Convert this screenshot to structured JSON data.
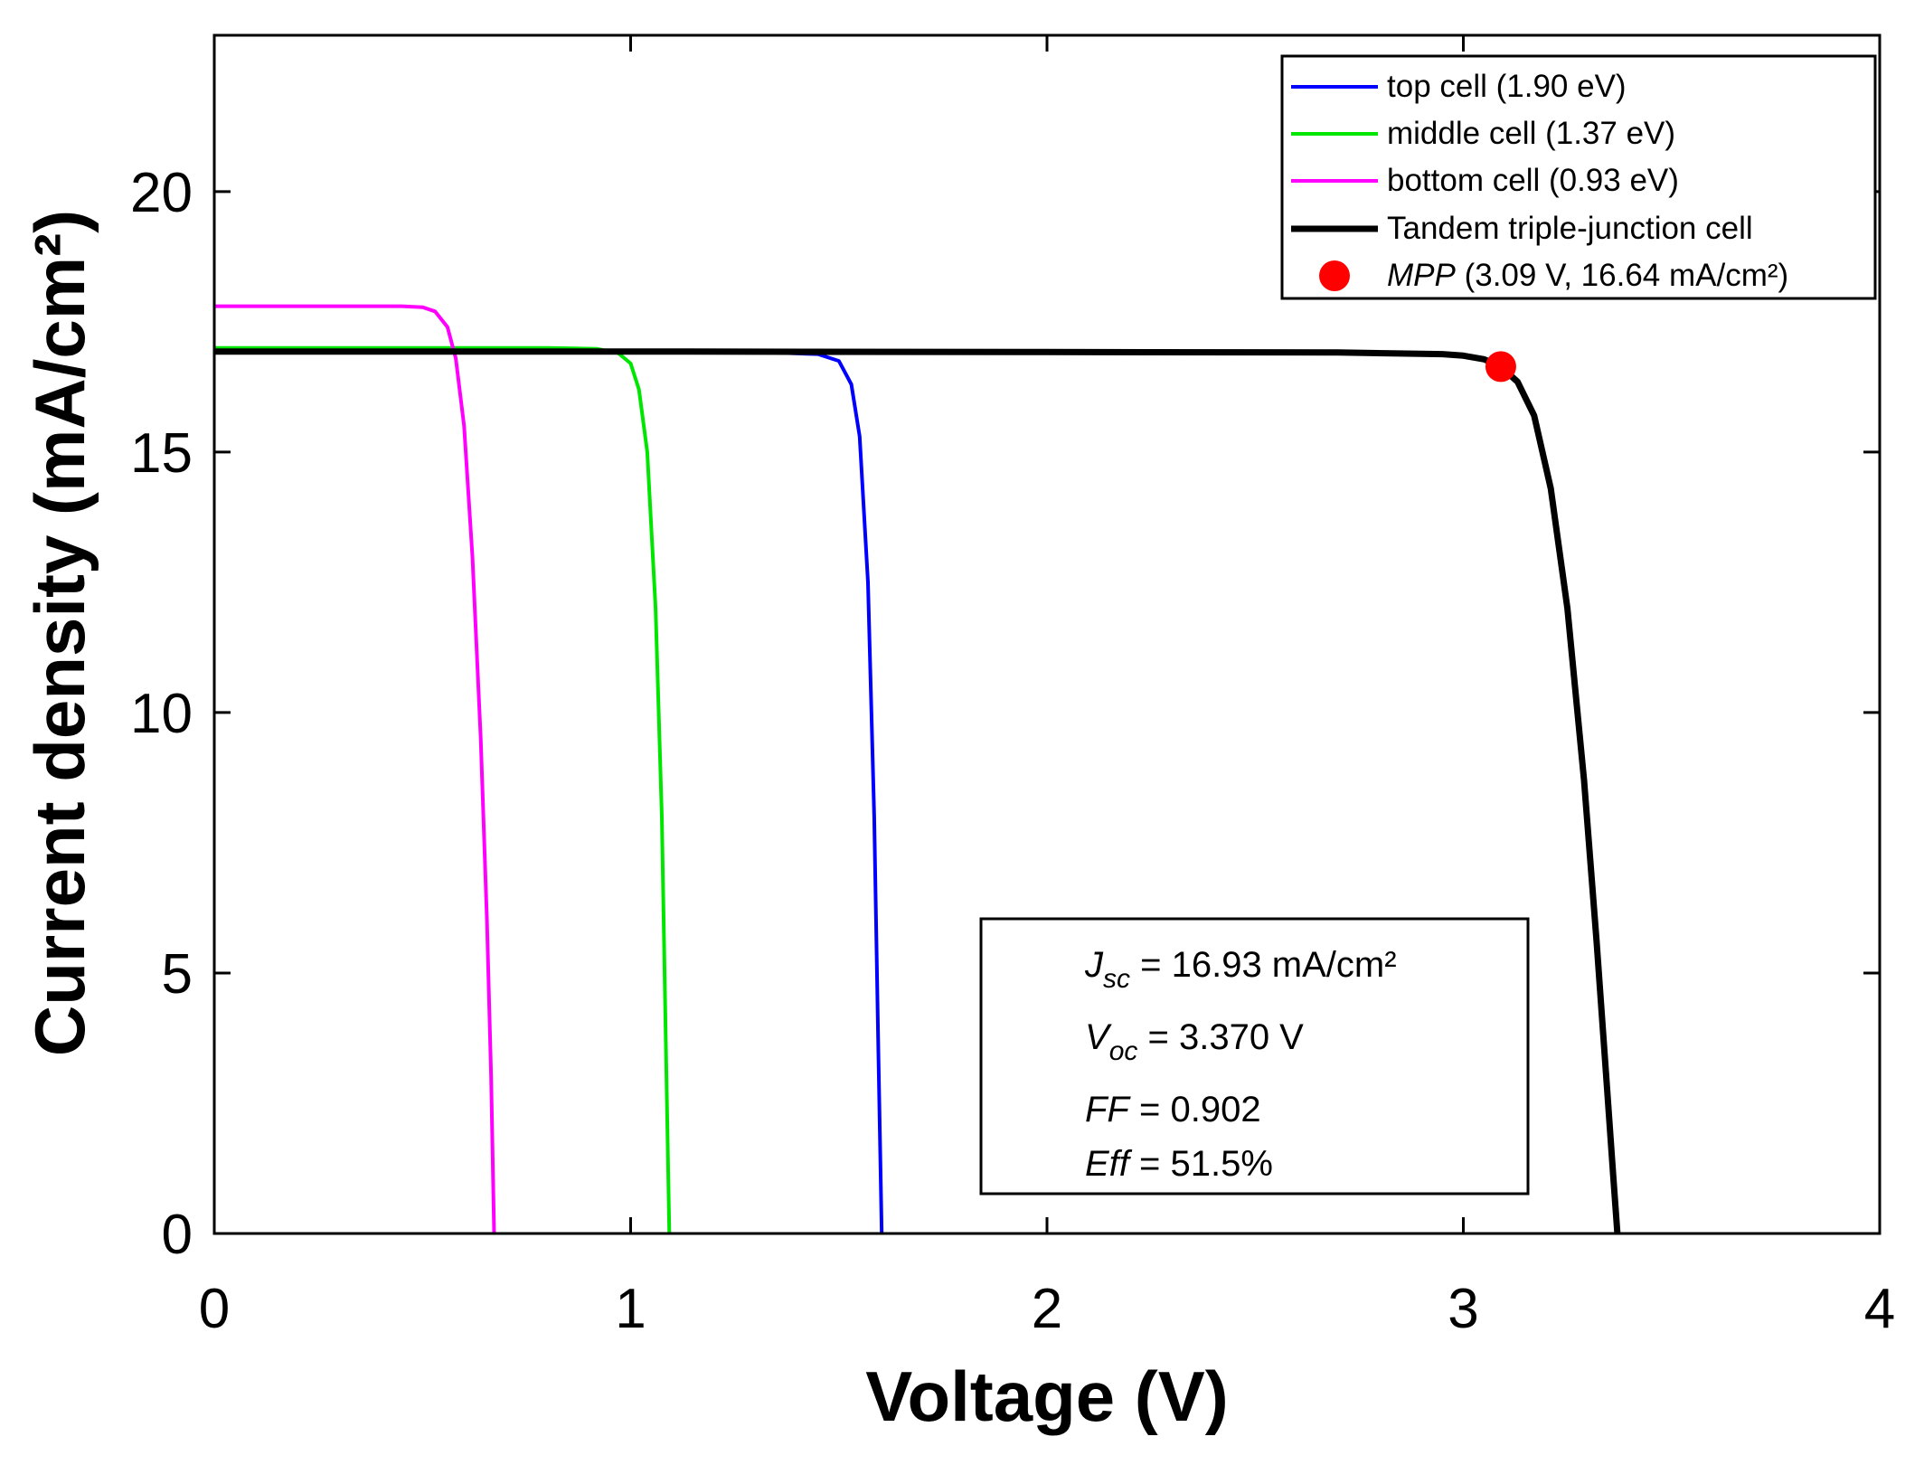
{
  "chart_data": {
    "type": "line",
    "xlabel": "Voltage (V)",
    "ylabel": "Current density (mA/cm²)",
    "xlim": [
      0,
      4
    ],
    "ylim": [
      0,
      23
    ],
    "xticks": [
      0,
      1,
      2,
      3,
      4
    ],
    "xtick_labels": [
      "0",
      "1",
      "2",
      "3",
      "4"
    ],
    "yticks": [
      0,
      5,
      10,
      15,
      20
    ],
    "ytick_labels": [
      "0",
      "5",
      "10",
      "15",
      "20"
    ],
    "grid": false,
    "legend_position": "top-right",
    "series": [
      {
        "name": "top cell (1.90 eV)",
        "color": "#0000ff",
        "x": [
          0,
          0.5,
          1.0,
          1.3,
          1.45,
          1.5,
          1.53,
          1.55,
          1.57,
          1.585,
          1.595,
          1.603
        ],
        "y": [
          16.93,
          16.93,
          16.93,
          16.92,
          16.88,
          16.75,
          16.3,
          15.3,
          12.5,
          8.0,
          3.5,
          0
        ]
      },
      {
        "name": "middle cell (1.37 eV)",
        "color": "#00e600",
        "x": [
          0,
          0.5,
          0.8,
          0.92,
          0.97,
          1.0,
          1.02,
          1.04,
          1.06,
          1.075,
          1.085,
          1.093
        ],
        "y": [
          17.0,
          17.0,
          17.0,
          16.98,
          16.9,
          16.7,
          16.2,
          15.0,
          12.0,
          8.0,
          3.5,
          0
        ]
      },
      {
        "name": "bottom cell (0.93 eV)",
        "color": "#ff00ff",
        "x": [
          0,
          0.3,
          0.45,
          0.5,
          0.53,
          0.56,
          0.58,
          0.6,
          0.62,
          0.64,
          0.655,
          0.665,
          0.672
        ],
        "y": [
          17.8,
          17.8,
          17.8,
          17.78,
          17.7,
          17.4,
          16.8,
          15.5,
          13.0,
          9.5,
          6.0,
          3.0,
          0
        ]
      },
      {
        "name": "Tandem triple-junction cell",
        "color": "#000000",
        "x": [
          0,
          1.0,
          2.0,
          2.7,
          2.95,
          3.0,
          3.05,
          3.09,
          3.13,
          3.17,
          3.21,
          3.25,
          3.29,
          3.32,
          3.345,
          3.36,
          3.37
        ],
        "y": [
          16.93,
          16.93,
          16.92,
          16.91,
          16.88,
          16.85,
          16.78,
          16.64,
          16.35,
          15.7,
          14.3,
          12.0,
          8.7,
          5.6,
          2.8,
          1.1,
          0
        ]
      }
    ],
    "marker": {
      "label_italic": "MPP",
      "label_rest": " (3.09 V, 16.64 mA/cm²)",
      "x": 3.09,
      "y": 16.64,
      "color": "#ff0000"
    },
    "annotation": {
      "jsc_sym": "J",
      "jsc_sub": "sc",
      "jsc_value": " = 16.93 mA/cm²",
      "voc_sym": "V",
      "voc_sub": "oc",
      "voc_value": " = 3.370 V",
      "ff_sym": "FF",
      "ff_value": " = 0.902",
      "eff_sym": "Eff",
      "eff_value": " = 51.5%"
    }
  }
}
